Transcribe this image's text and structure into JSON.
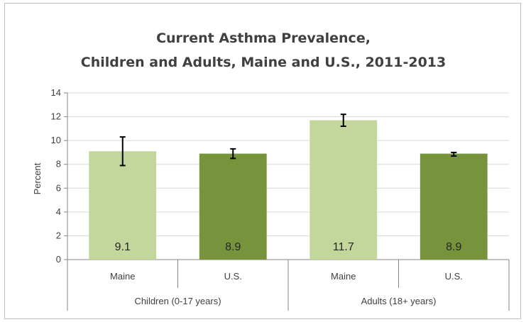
{
  "chart_data": {
    "type": "bar",
    "title_lines": [
      "Current Asthma Prevalence,",
      "Children and Adults, Maine and U.S., 2011-2013"
    ],
    "ylabel": "Percent",
    "xlabel": "",
    "ylim": [
      0,
      14
    ],
    "yticks": [
      0,
      2,
      4,
      6,
      8,
      10,
      12,
      14
    ],
    "grid": true,
    "legend": "none",
    "categories": [
      "Maine",
      "U.S.",
      "Maine",
      "U.S."
    ],
    "groups": [
      {
        "label": "Children (0-17 years)",
        "categories": [
          "Maine",
          "U.S."
        ]
      },
      {
        "label": "Adults (18+ years)",
        "categories": [
          "Maine",
          "U.S."
        ]
      }
    ],
    "values": [
      9.1,
      8.9,
      11.7,
      8.9
    ],
    "value_labels": [
      "9.1",
      "8.9",
      "11.7",
      "8.9"
    ],
    "error_low": [
      7.9,
      8.5,
      11.2,
      8.7
    ],
    "error_high": [
      10.3,
      9.3,
      12.2,
      9.0
    ],
    "bar_colors": [
      "#c3d69b",
      "#77933c",
      "#c3d69b",
      "#77933c"
    ]
  },
  "colors": {
    "grid": "#d9d9d9",
    "axis": "#868686",
    "error_bar": "#000000"
  }
}
